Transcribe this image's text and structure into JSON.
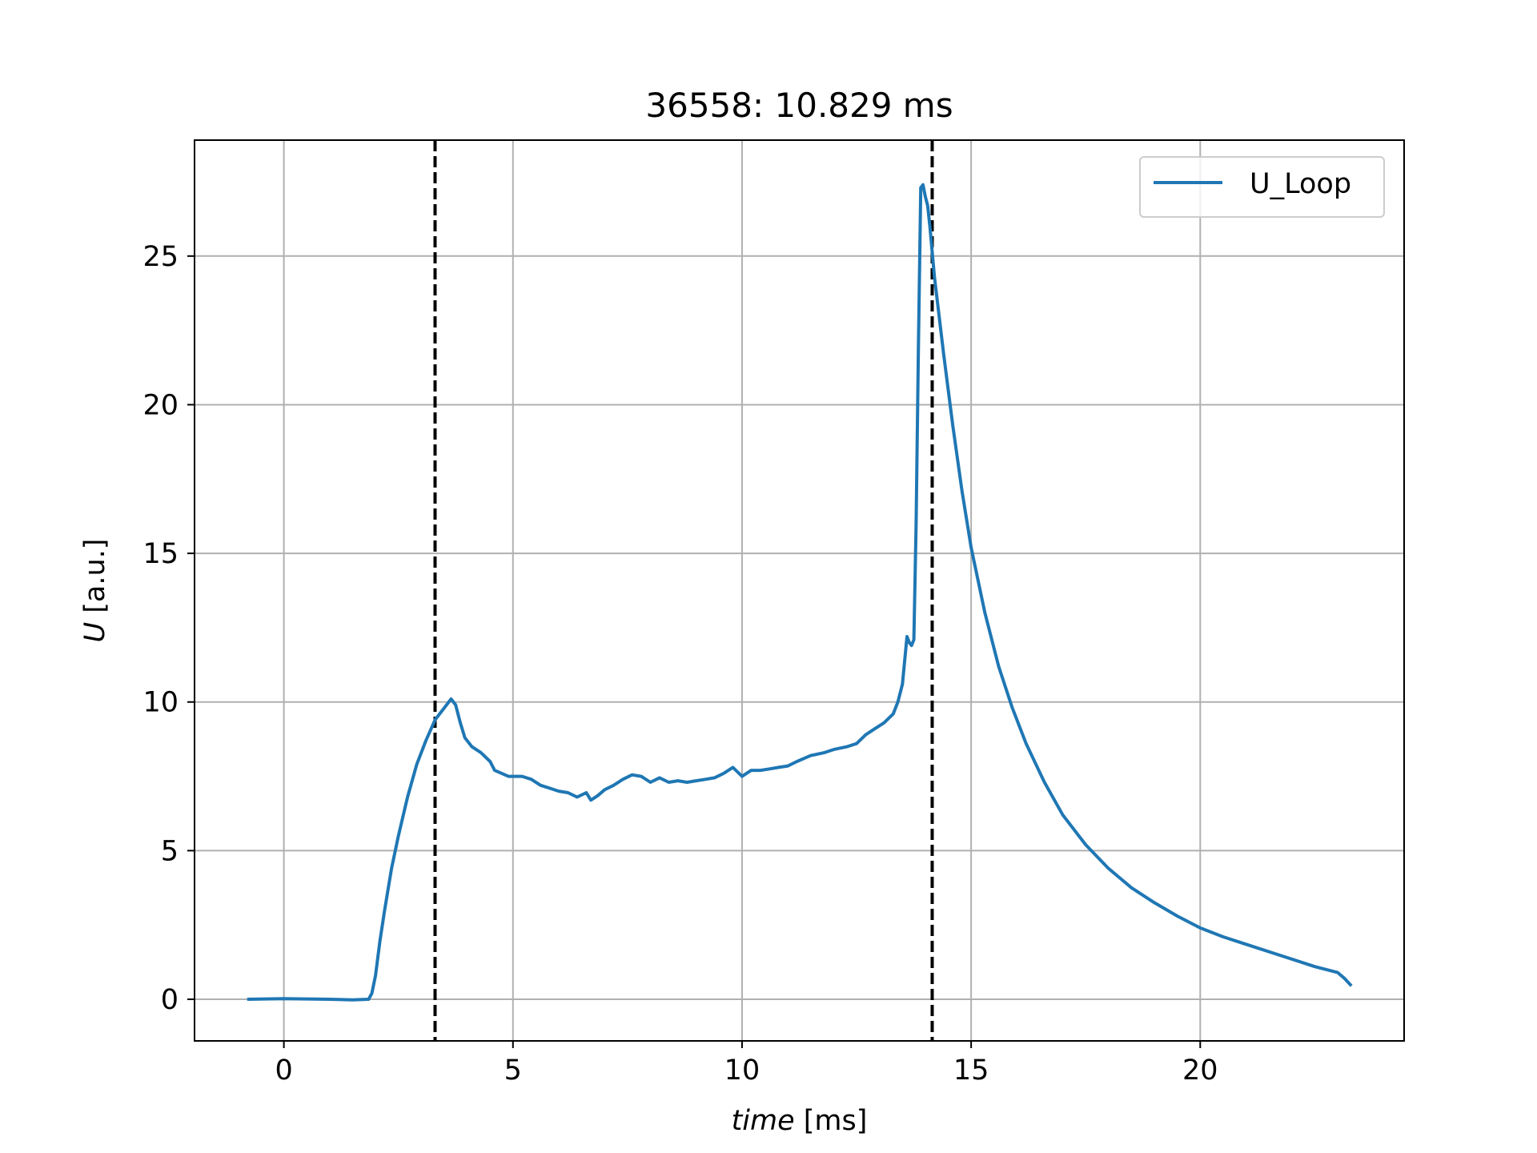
{
  "chart_data": {
    "type": "line",
    "title": "36558: 10.829 ms",
    "xlabel_italic": "time",
    "xlabel_unit": " [ms]",
    "ylabel_italic": "U",
    "ylabel_unit": " [a.u.]",
    "xlim": [
      -1.95,
      24.45
    ],
    "ylim": [
      -1.4,
      28.9
    ],
    "xticks": [
      0,
      5,
      10,
      15,
      20
    ],
    "yticks": [
      0,
      5,
      10,
      15,
      20,
      25
    ],
    "grid": true,
    "legend_position": "top-right",
    "vlines": [
      3.3,
      14.15
    ],
    "series": [
      {
        "name": "U_Loop",
        "color": "#1f77b4",
        "x": [
          -0.8,
          0.0,
          0.5,
          1.0,
          1.5,
          1.85,
          1.92,
          2.0,
          2.1,
          2.2,
          2.35,
          2.5,
          2.7,
          2.9,
          3.1,
          3.3,
          3.5,
          3.65,
          3.75,
          3.85,
          3.95,
          4.1,
          4.3,
          4.5,
          4.6,
          4.75,
          4.9,
          5.0,
          5.2,
          5.4,
          5.6,
          5.8,
          6.0,
          6.2,
          6.4,
          6.6,
          6.7,
          6.85,
          7.0,
          7.2,
          7.4,
          7.6,
          7.8,
          8.0,
          8.2,
          8.4,
          8.6,
          8.8,
          9.0,
          9.2,
          9.4,
          9.6,
          9.8,
          9.9,
          10.0,
          10.2,
          10.4,
          10.6,
          10.8,
          11.0,
          11.2,
          11.5,
          11.8,
          12.0,
          12.3,
          12.5,
          12.7,
          12.9,
          13.1,
          13.3,
          13.4,
          13.5,
          13.6,
          13.65,
          13.7,
          13.75,
          13.8,
          13.85,
          13.9,
          13.95,
          14.0,
          14.05,
          14.1,
          14.2,
          14.4,
          14.6,
          14.8,
          15.0,
          15.3,
          15.6,
          15.9,
          16.2,
          16.6,
          17.0,
          17.5,
          18.0,
          18.5,
          19.0,
          19.5,
          20.0,
          20.5,
          21.0,
          21.5,
          22.0,
          22.5,
          23.0,
          23.15,
          23.3
        ],
        "values": [
          0.0,
          0.02,
          0.01,
          0.0,
          -0.02,
          0.0,
          0.2,
          0.8,
          2.0,
          3.0,
          4.4,
          5.5,
          6.8,
          7.9,
          8.7,
          9.4,
          9.8,
          10.1,
          9.9,
          9.3,
          8.8,
          8.5,
          8.3,
          8.0,
          7.7,
          7.6,
          7.5,
          7.5,
          7.5,
          7.4,
          7.2,
          7.1,
          7.0,
          6.95,
          6.8,
          6.95,
          6.7,
          6.85,
          7.05,
          7.2,
          7.4,
          7.55,
          7.5,
          7.3,
          7.45,
          7.3,
          7.35,
          7.3,
          7.35,
          7.4,
          7.45,
          7.6,
          7.8,
          7.65,
          7.5,
          7.7,
          7.7,
          7.75,
          7.8,
          7.85,
          8.0,
          8.2,
          8.3,
          8.4,
          8.5,
          8.6,
          8.9,
          9.1,
          9.3,
          9.6,
          10.0,
          10.6,
          12.2,
          12.0,
          11.9,
          12.1,
          16.0,
          22.0,
          27.3,
          27.4,
          27.0,
          26.7,
          26.0,
          24.3,
          21.7,
          19.3,
          17.1,
          15.2,
          13.0,
          11.2,
          9.8,
          8.6,
          7.3,
          6.2,
          5.2,
          4.4,
          3.75,
          3.25,
          2.8,
          2.4,
          2.1,
          1.85,
          1.6,
          1.35,
          1.1,
          0.9,
          0.7,
          0.45
        ]
      }
    ]
  }
}
